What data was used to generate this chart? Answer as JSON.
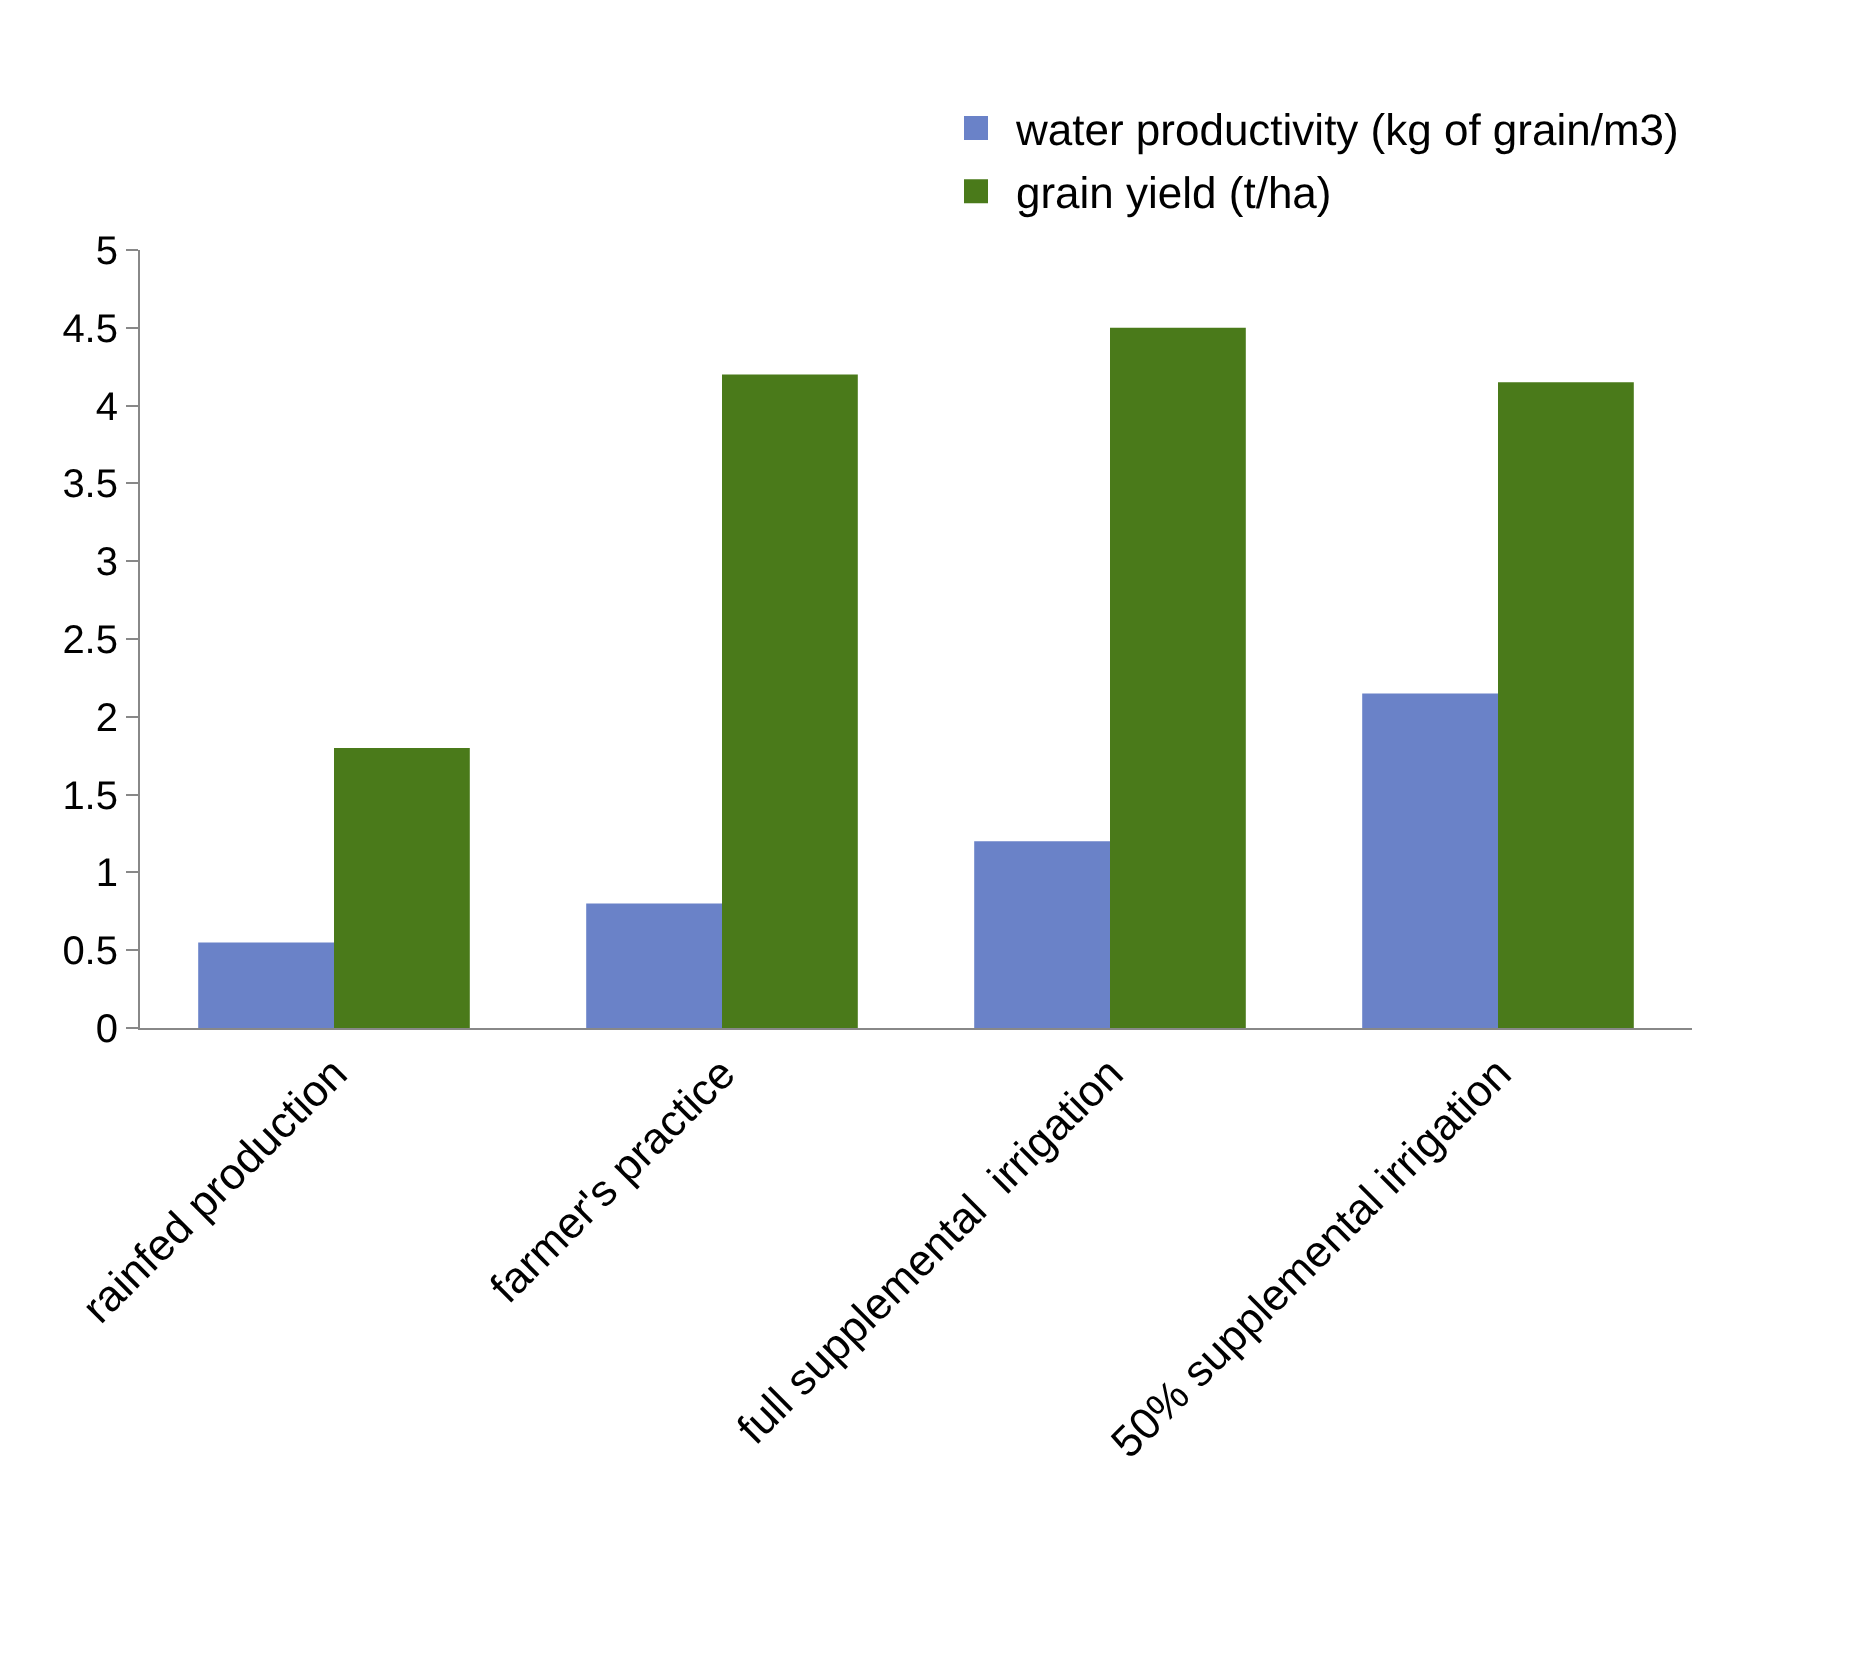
{
  "chart_data": {
    "type": "bar",
    "categories": [
      "rainfed production",
      "farmer's practice",
      "full supplemental  irrigation",
      "50% supplemental irrigation"
    ],
    "series": [
      {
        "name": "water productivity (kg of grain/m3)",
        "color": "#6a82c8",
        "values": [
          0.55,
          0.8,
          1.2,
          2.15
        ]
      },
      {
        "name": "grain yield (t/ha)",
        "color": "#4a7a1a",
        "values": [
          1.8,
          4.2,
          4.5,
          4.15
        ]
      }
    ],
    "ylim": [
      0,
      5
    ],
    "yticks": [
      0,
      0.5,
      1,
      1.5,
      2,
      2.5,
      3,
      3.5,
      4,
      4.5,
      5
    ],
    "grid": false,
    "legend": "top right"
  }
}
